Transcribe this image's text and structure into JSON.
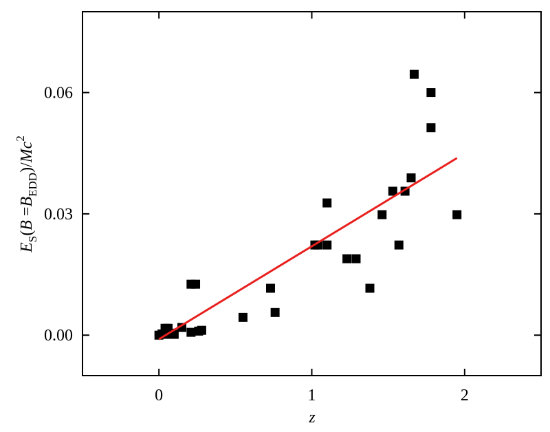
{
  "chart_data": {
    "type": "scatter",
    "xlabel": "z",
    "ylabel": [
      "E",
      "S",
      "(",
      "B",
      " =",
      "B",
      "EDD",
      ")/",
      "Mc",
      "2"
    ],
    "x": [
      0,
      0.02,
      0.04,
      0.06,
      0.05,
      0.08,
      0.1,
      0.15,
      0.21,
      0.24,
      0.21,
      0.26,
      0.28,
      0.55,
      0.73,
      0.76,
      1.02,
      1.04,
      1.1,
      1.1,
      1.23,
      1.29,
      1.38,
      1.46,
      1.53,
      1.57,
      1.61,
      1.65,
      1.67,
      1.78,
      1.78,
      1.95
    ],
    "values": [
      0,
      0.0003,
      0.0017,
      0.0017,
      0.0002,
      0.0005,
      0.0002,
      0.0019,
      0.0126,
      0.0126,
      0.0007,
      0.001,
      0.0012,
      0.0044,
      0.0116,
      0.0056,
      0.0223,
      0.0223,
      0.0223,
      0.0327,
      0.0189,
      0.0189,
      0.0116,
      0.0298,
      0.0356,
      0.0223,
      0.0356,
      0.0389,
      0.0645,
      0.06,
      0.0513,
      0.0298
    ],
    "color": "#000000",
    "fit": {
      "x": [
        0,
        1.95
      ],
      "values": [
        -0.001,
        0.0438
      ],
      "color": "#e8201e"
    },
    "xlim": [
      -0.5,
      2.5
    ],
    "xticks": [
      0,
      1,
      2
    ],
    "ylim": [
      -0.01,
      0.08
    ],
    "yticks": [
      {
        "value": 0,
        "label": "0.00"
      },
      {
        "value": 0.03,
        "label": "0.03"
      },
      {
        "value": 0.06,
        "label": "0.06"
      }
    ]
  }
}
